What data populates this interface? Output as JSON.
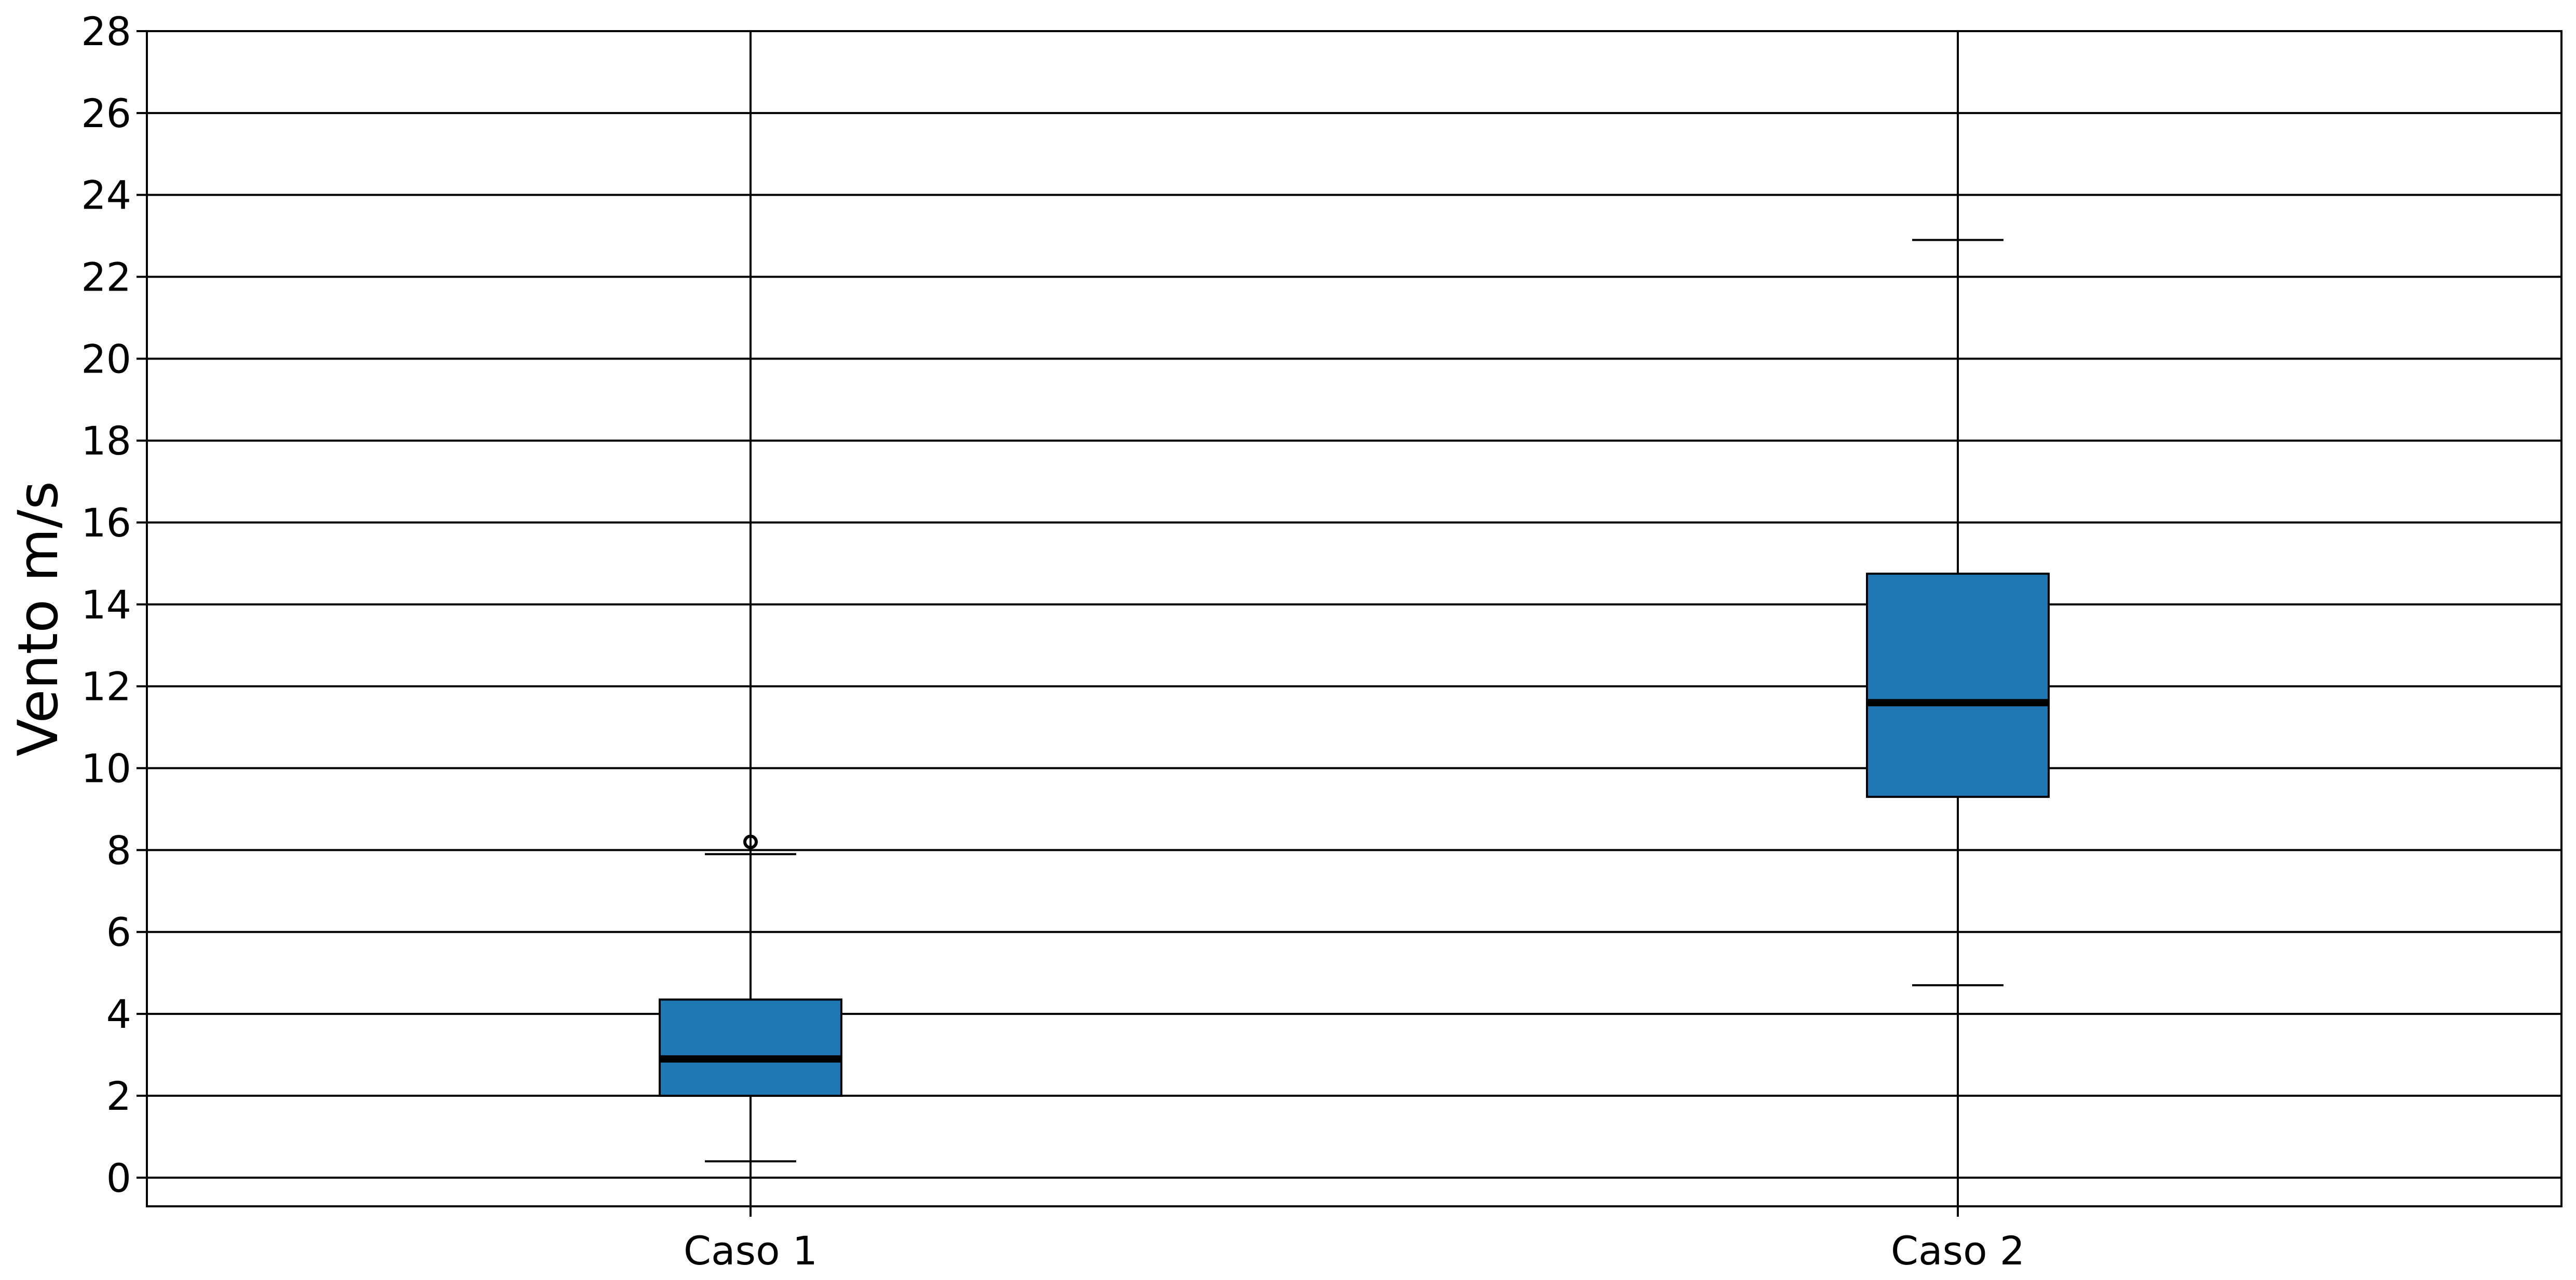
{
  "chart_data": {
    "type": "box",
    "title": "",
    "xlabel": "",
    "ylabel": "Vento m/s",
    "ylim": [
      -0.7,
      28
    ],
    "yticks": [
      0,
      2,
      4,
      6,
      8,
      10,
      12,
      14,
      16,
      18,
      20,
      22,
      24,
      26,
      28
    ],
    "ytick_labels": [
      "0",
      "2",
      "4",
      "6",
      "8",
      "10",
      "12",
      "14",
      "16",
      "18",
      "20",
      "22",
      "24",
      "26",
      "28"
    ],
    "grid": {
      "horizontal": true,
      "vertical": true
    },
    "colors": {
      "box_fill": "#1f77b4",
      "median": "#000000",
      "grid": "#000000"
    },
    "categories": [
      "Caso 1",
      "Caso 2"
    ],
    "boxes": [
      {
        "label": "Caso 1",
        "whisker_low": 0.4,
        "q1": 2.0,
        "median": 2.9,
        "q3": 4.35,
        "whisker_high": 7.9,
        "outliers": [
          8.2
        ]
      },
      {
        "label": "Caso 2",
        "whisker_low": 4.7,
        "q1": 9.3,
        "median": 11.6,
        "q3": 14.75,
        "whisker_high": 22.9,
        "outliers": []
      }
    ]
  }
}
